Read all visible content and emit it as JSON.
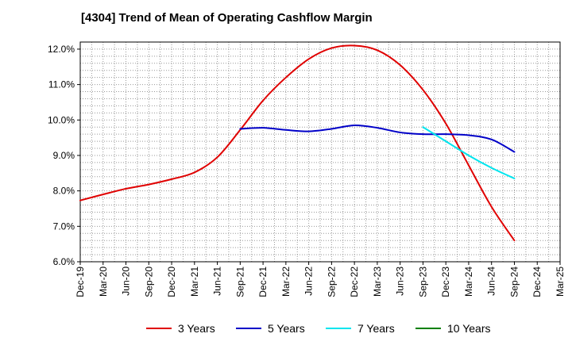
{
  "chart_data": {
    "type": "line",
    "title": "[4304]  Trend of Mean of Operating Cashflow Margin",
    "xlabel": "",
    "ylabel": "",
    "x_categories": [
      "Dec-19",
      "Mar-20",
      "Jun-20",
      "Sep-20",
      "Dec-20",
      "Mar-21",
      "Jun-21",
      "Sep-21",
      "Dec-21",
      "Mar-22",
      "Jun-22",
      "Sep-22",
      "Dec-22",
      "Mar-23",
      "Jun-23",
      "Sep-23",
      "Dec-23",
      "Mar-24",
      "Jun-24",
      "Sep-24",
      "Dec-24",
      "Mar-25"
    ],
    "y_ticks": [
      "6.0%",
      "7.0%",
      "8.0%",
      "9.0%",
      "10.0%",
      "11.0%",
      "12.0%"
    ],
    "ylim": [
      6.0,
      12.2
    ],
    "grid": true,
    "legend_position": "bottom",
    "series": [
      {
        "name": "3 Years",
        "color": "#e00000",
        "values": [
          7.73,
          7.9,
          8.06,
          8.18,
          8.33,
          8.52,
          8.95,
          9.72,
          10.55,
          11.2,
          11.72,
          12.03,
          12.1,
          11.97,
          11.55,
          10.85,
          9.9,
          8.72,
          7.55,
          6.6,
          null,
          null
        ]
      },
      {
        "name": "5 Years",
        "color": "#0000c8",
        "values": [
          null,
          null,
          null,
          null,
          null,
          null,
          null,
          9.75,
          9.78,
          9.72,
          9.68,
          9.75,
          9.85,
          9.78,
          9.65,
          9.6,
          9.6,
          9.57,
          9.45,
          9.1,
          null,
          null
        ]
      },
      {
        "name": "7 Years",
        "color": "#00e5ee",
        "values": [
          null,
          null,
          null,
          null,
          null,
          null,
          null,
          null,
          null,
          null,
          null,
          null,
          null,
          null,
          null,
          9.8,
          9.4,
          9.0,
          8.65,
          8.35,
          null,
          null
        ]
      },
      {
        "name": "10 Years",
        "color": "#008000",
        "values": [
          null,
          null,
          null,
          null,
          null,
          null,
          null,
          null,
          null,
          null,
          null,
          null,
          null,
          null,
          null,
          null,
          null,
          null,
          null,
          null,
          null,
          null
        ]
      }
    ]
  }
}
